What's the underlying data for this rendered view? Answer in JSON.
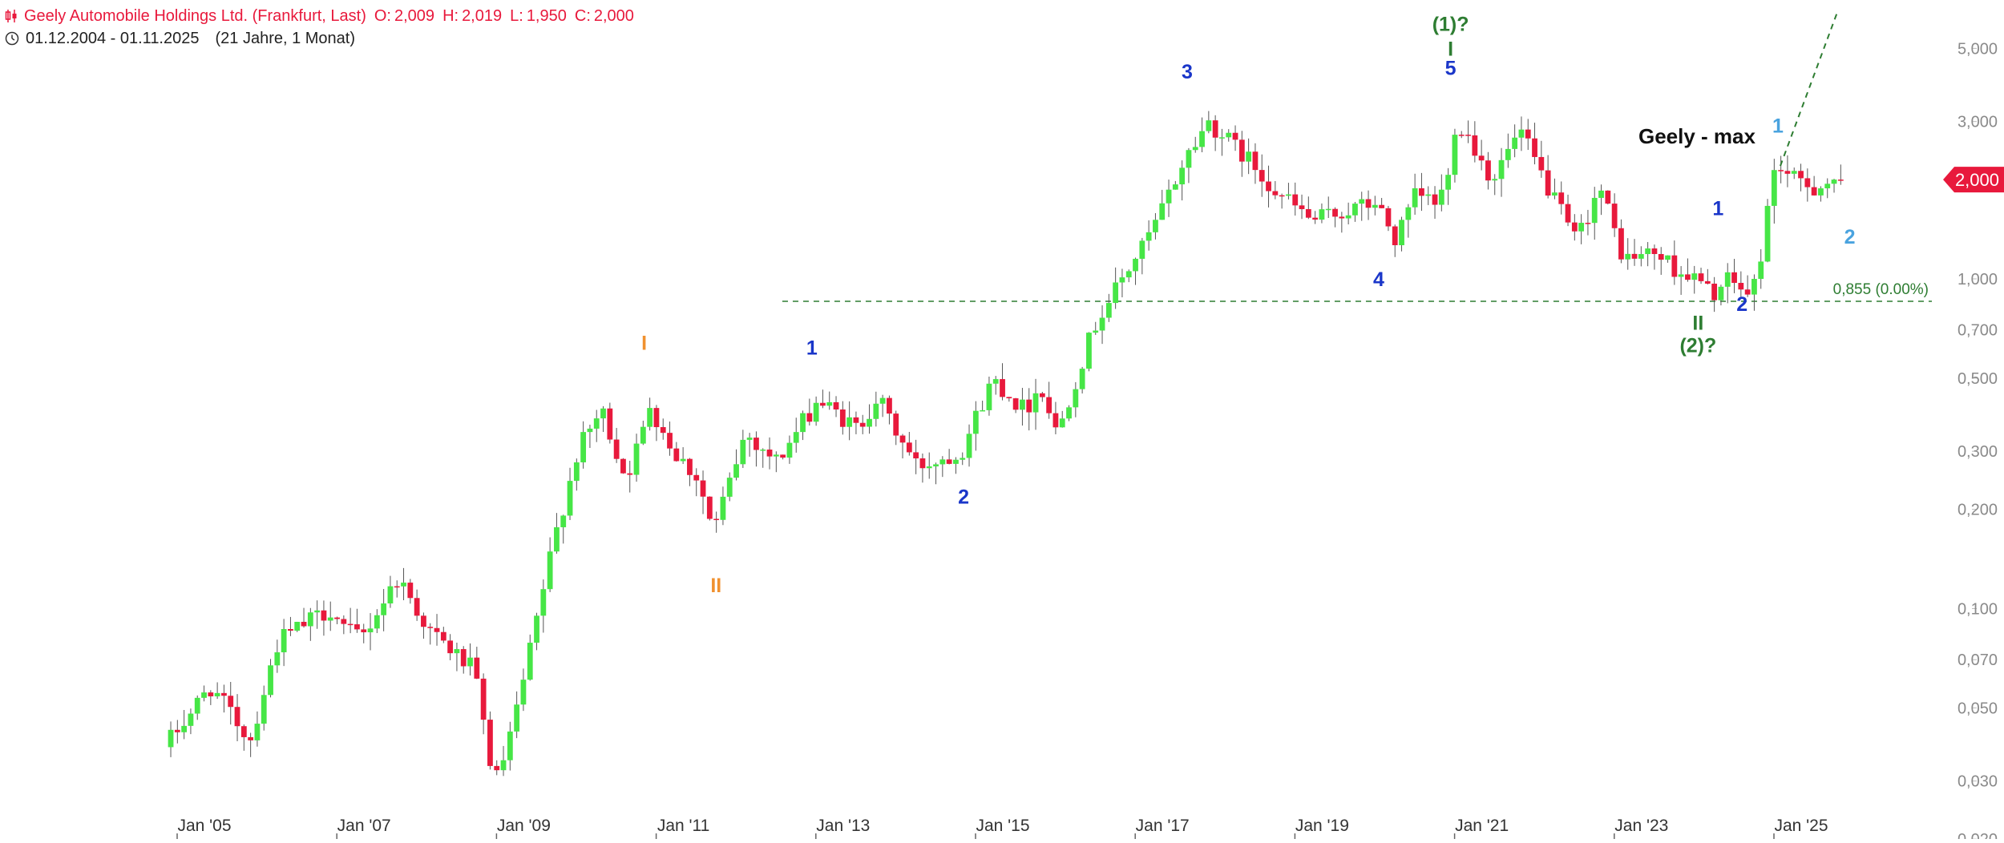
{
  "header": {
    "title": "Geely Automobile Holdings Ltd. (Frankfurt, Last)",
    "ohlc": [
      {
        "label": "O:",
        "value": "2,009"
      },
      {
        "label": "H:",
        "value": "2,019"
      },
      {
        "label": "L:",
        "value": "1,950"
      },
      {
        "label": "C:",
        "value": "2,000"
      }
    ],
    "date_range": "01.12.2004 - 01.11.2025",
    "period": "(21 Jahre, 1 Monat)",
    "candles_icon": "candlestick-icon",
    "clock_icon": "clock-icon"
  },
  "colors": {
    "up": "#46e646",
    "down": "#e8193c",
    "grid_text": "#8a8a8a",
    "axis_text": "#333333",
    "green_label": "#2e7d32",
    "blue_label": "#1a36c9",
    "light_blue_label": "#4aa3df",
    "orange_label": "#f0912f",
    "fib_line": "#2e7d32",
    "price_badge": "#e8193c"
  },
  "chart_data": {
    "type": "candlestick",
    "title": "Geely - max",
    "interval": "monthly",
    "y_scale": "log",
    "ylim": [
      0.02,
      6.5
    ],
    "y_ticks": [
      "5,000",
      "3,000",
      "1,000",
      "0,700",
      "0,500",
      "0,300",
      "0,200",
      "0,100",
      "0,070",
      "0,050",
      "0,030",
      "0,020"
    ],
    "y_tick_values": [
      5,
      3,
      1,
      0.7,
      0.5,
      0.3,
      0.2,
      0.1,
      0.07,
      0.05,
      0.03,
      0.02
    ],
    "x_ticks": [
      "Jan '05",
      "Jan '07",
      "Jan '09",
      "Jan '11",
      "Jan '13",
      "Jan '15",
      "Jan '17",
      "Jan '19",
      "Jan '21",
      "Jan '23",
      "Jan '25"
    ],
    "x_tick_years": [
      2005,
      2007,
      2009,
      2011,
      2013,
      2015,
      2017,
      2019,
      2021,
      2023,
      2025
    ],
    "x_range": [
      2004.92,
      2025.84
    ],
    "last_price": "2,000",
    "last_price_value": 2.0,
    "horizontal_line": {
      "value": 0.855,
      "label": "0,855 (0.00%)",
      "start_x": 2012.58
    },
    "trend_line": {
      "from": [
        2025.08,
        2.2
      ],
      "to": [
        2025.8,
        6.5
      ]
    },
    "anchors": [
      [
        2004.92,
        0.038
      ],
      [
        2005.5,
        0.058
      ],
      [
        2006.0,
        0.04
      ],
      [
        2006.35,
        0.08
      ],
      [
        2007.0,
        0.1
      ],
      [
        2007.2,
        0.085
      ],
      [
        2007.4,
        0.082
      ],
      [
        2007.85,
        0.125
      ],
      [
        2008.25,
        0.085
      ],
      [
        2008.8,
        0.065
      ],
      [
        2009.0,
        0.035
      ],
      [
        2009.1,
        0.03
      ],
      [
        2009.35,
        0.05
      ],
      [
        2009.8,
        0.16
      ],
      [
        2010.1,
        0.3
      ],
      [
        2010.4,
        0.4
      ],
      [
        2010.7,
        0.25
      ],
      [
        2010.9,
        0.33
      ],
      [
        2011.0,
        0.42
      ],
      [
        2011.3,
        0.3
      ],
      [
        2011.6,
        0.25
      ],
      [
        2011.8,
        0.17
      ],
      [
        2012.2,
        0.34
      ],
      [
        2012.6,
        0.28
      ],
      [
        2012.9,
        0.36
      ],
      [
        2013.1,
        0.43
      ],
      [
        2013.6,
        0.35
      ],
      [
        2013.85,
        0.44
      ],
      [
        2014.1,
        0.34
      ],
      [
        2014.35,
        0.27
      ],
      [
        2014.9,
        0.3
      ],
      [
        2015.3,
        0.5
      ],
      [
        2015.7,
        0.4
      ],
      [
        2015.9,
        0.48
      ],
      [
        2016.1,
        0.34
      ],
      [
        2016.4,
        0.55
      ],
      [
        2016.6,
        0.75
      ],
      [
        2017.3,
        1.4
      ],
      [
        2017.7,
        2.3
      ],
      [
        2018.0,
        3.0
      ],
      [
        2018.5,
        2.3
      ],
      [
        2018.9,
        1.8
      ],
      [
        2019.3,
        1.5
      ],
      [
        2019.7,
        1.6
      ],
      [
        2020.1,
        1.7
      ],
      [
        2020.35,
        1.3
      ],
      [
        2020.6,
        1.8
      ],
      [
        2020.85,
        1.7
      ],
      [
        2021.0,
        2.0
      ],
      [
        2021.1,
        3.1
      ],
      [
        2021.3,
        2.6
      ],
      [
        2021.55,
        2.0
      ],
      [
        2021.9,
        2.8
      ],
      [
        2022.2,
        2.0
      ],
      [
        2022.6,
        1.3
      ],
      [
        2022.9,
        1.9
      ],
      [
        2023.2,
        1.15
      ],
      [
        2023.6,
        1.2
      ],
      [
        2023.9,
        1.05
      ],
      [
        2024.1,
        1.0
      ],
      [
        2024.3,
        0.9
      ],
      [
        2024.55,
        1.0
      ],
      [
        2024.8,
        0.87
      ],
      [
        2024.95,
        1.3
      ],
      [
        2025.1,
        2.3
      ],
      [
        2025.3,
        2.0
      ],
      [
        2025.6,
        1.9
      ],
      [
        2025.84,
        2.0
      ]
    ],
    "wave_labels": [
      {
        "text": "I",
        "x": 2010.85,
        "y": 0.61,
        "color": "orange"
      },
      {
        "text": "II",
        "x": 2011.75,
        "y": 0.112,
        "color": "orange"
      },
      {
        "text": "1",
        "x": 2012.95,
        "y": 0.59,
        "color": "blue"
      },
      {
        "text": "2",
        "x": 2014.85,
        "y": 0.208,
        "color": "blue"
      },
      {
        "text": "3",
        "x": 2017.65,
        "y": 4.05,
        "color": "blue"
      },
      {
        "text": "4",
        "x": 2020.05,
        "y": 0.95,
        "color": "blue"
      },
      {
        "text": "5",
        "x": 2020.95,
        "y": 4.15,
        "color": "blue"
      },
      {
        "text": "(1)?",
        "x": 2020.95,
        "y": 5.65,
        "color": "green"
      },
      {
        "text": "I",
        "x": 2020.95,
        "y": 4.75,
        "color": "green"
      },
      {
        "text": "1",
        "x": 2024.3,
        "y": 1.56,
        "color": "blue"
      },
      {
        "text": "2",
        "x": 2024.6,
        "y": 0.8,
        "color": "blue"
      },
      {
        "text": "II",
        "x": 2024.05,
        "y": 0.7,
        "color": "green"
      },
      {
        "text": "(2)?",
        "x": 2024.05,
        "y": 0.6,
        "color": "green"
      },
      {
        "text": "1",
        "x": 2025.05,
        "y": 2.78,
        "color": "light_blue"
      },
      {
        "text": "2",
        "x": 2025.95,
        "y": 1.28,
        "color": "light_blue"
      }
    ]
  }
}
